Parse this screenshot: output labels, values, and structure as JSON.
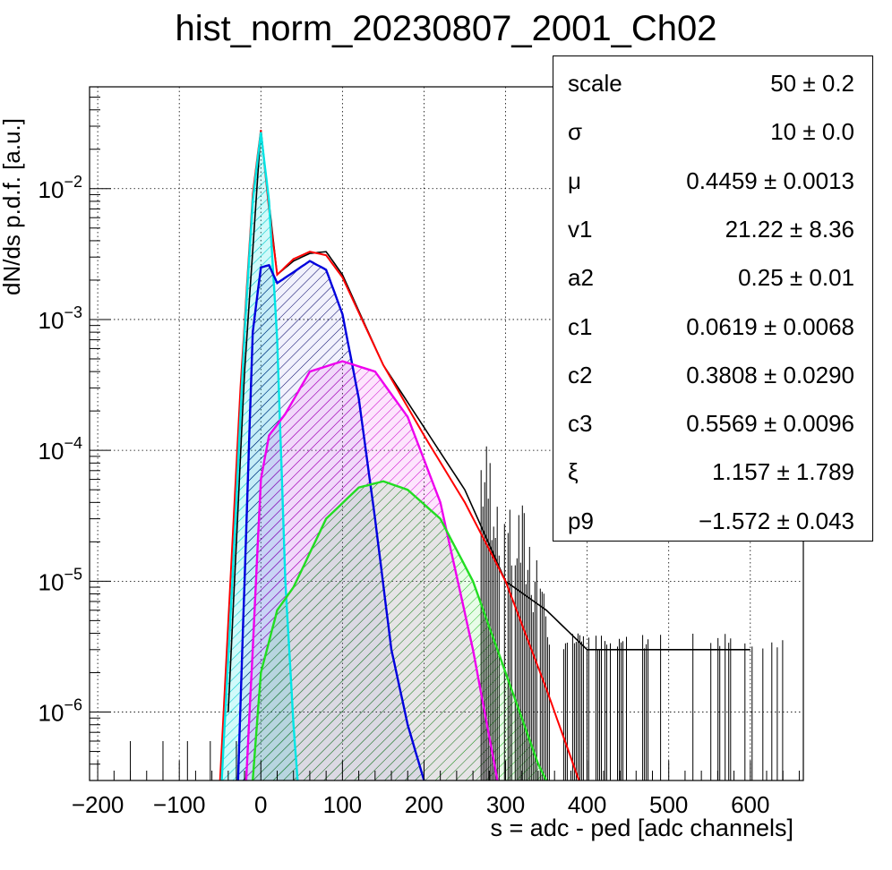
{
  "chart_data": {
    "type": "histogram",
    "title": "hist_norm_20230807_2001_Ch02",
    "xlabel": "s = adc - ped [adc channels]",
    "ylabel": "dN/ds p.d.f. [a.u.]",
    "xlim": [
      -210,
      665
    ],
    "ylim": [
      3e-07,
      0.06
    ],
    "yscale": "log",
    "grid": true,
    "x_ticks": [
      "−200",
      "−100",
      "0",
      "100",
      "200",
      "300",
      "400",
      "500",
      "600"
    ],
    "x_tick_values": [
      -200,
      -100,
      0,
      100,
      200,
      300,
      400,
      500,
      600
    ],
    "y_ticks": [
      {
        "base": "10",
        "exp": "−2",
        "value": 0.01
      },
      {
        "base": "10",
        "exp": "−3",
        "value": 0.001
      },
      {
        "base": "10",
        "exp": "−4",
        "value": 0.0001
      },
      {
        "base": "10",
        "exp": "−5",
        "value": 1e-05
      },
      {
        "base": "10",
        "exp": "−6",
        "value": 1e-06
      }
    ],
    "series": [
      {
        "color": "#000000",
        "style": "histogram",
        "x": [
          -40,
          -20,
          0,
          20,
          40,
          60,
          80,
          100,
          150,
          200,
          250,
          300,
          350,
          400,
          500,
          600
        ],
        "y": [
          1e-06,
          0.0004,
          0.028,
          0.0022,
          0.0028,
          0.0032,
          0.0033,
          0.0022,
          0.00045,
          0.00015,
          5e-05,
          1e-05,
          6e-06,
          3e-06,
          3e-06,
          3e-06
        ]
      },
      {
        "color": "#ff0000",
        "style": "total_fit",
        "x": [
          -50,
          -25,
          -10,
          0,
          10,
          20,
          40,
          60,
          80,
          100,
          150,
          200,
          250,
          300,
          350,
          390
        ],
        "y": [
          3e-07,
          0.0003,
          0.009,
          0.028,
          0.007,
          0.0022,
          0.0029,
          0.0033,
          0.0031,
          0.0021,
          0.00045,
          0.00013,
          4e-05,
          1e-05,
          1.5e-06,
          3e-07
        ]
      },
      {
        "color": "#00e5e5",
        "style": "component",
        "hatch": "diag",
        "x": [
          -48,
          -35,
          -20,
          -10,
          0,
          10,
          20,
          30,
          40,
          45
        ],
        "y": [
          3e-07,
          1e-05,
          0.0008,
          0.008,
          0.027,
          0.008,
          0.0007,
          1e-05,
          8e-07,
          3e-07
        ]
      },
      {
        "color": "#0000dd",
        "style": "component",
        "hatch": "diag",
        "x": [
          -28,
          -20,
          -10,
          0,
          10,
          20,
          40,
          60,
          80,
          100,
          120,
          140,
          160,
          180,
          200
        ],
        "y": [
          3e-07,
          1e-05,
          0.0008,
          0.0025,
          0.0026,
          0.0019,
          0.0023,
          0.0028,
          0.0024,
          0.0011,
          0.00025,
          3e-05,
          3e-06,
          8e-07,
          3e-07
        ]
      },
      {
        "color": "#ee00ee",
        "style": "component",
        "hatch": "diag",
        "x": [
          -18,
          -10,
          0,
          10,
          30,
          60,
          100,
          140,
          180,
          220,
          260,
          290
        ],
        "y": [
          3e-07,
          3e-06,
          6e-05,
          0.00013,
          0.00019,
          0.0004,
          0.00048,
          0.0004,
          0.00018,
          4e-05,
          3e-06,
          3e-07
        ]
      },
      {
        "color": "#22dd22",
        "style": "component",
        "hatch": "diag",
        "x": [
          -10,
          0,
          20,
          40,
          80,
          120,
          150,
          180,
          220,
          260,
          300,
          340,
          350
        ],
        "y": [
          3e-07,
          2e-06,
          6e-06,
          9e-06,
          3e-05,
          5.2e-05,
          5.8e-05,
          5e-05,
          3e-05,
          1e-05,
          2e-06,
          4e-07,
          3e-07
        ]
      }
    ]
  },
  "stats": [
    {
      "name": "scale",
      "value": "50 ± 0.2"
    },
    {
      "name": "σ",
      "value": "10 ± 0.0"
    },
    {
      "name": "μ",
      "value": "0.4459 ± 0.0013"
    },
    {
      "name": "v1",
      "value": "21.22 ± 8.36"
    },
    {
      "name": "a2",
      "value": "0.25 ± 0.01"
    },
    {
      "name": "c1",
      "value": "0.0619 ± 0.0068"
    },
    {
      "name": "c2",
      "value": "0.3808 ± 0.0290"
    },
    {
      "name": "c3",
      "value": "0.5569 ± 0.0096"
    },
    {
      "name": "ξ",
      "value": "1.157 ± 1.789"
    },
    {
      "name": "p9",
      "value": "−1.572 ± 0.043"
    }
  ]
}
